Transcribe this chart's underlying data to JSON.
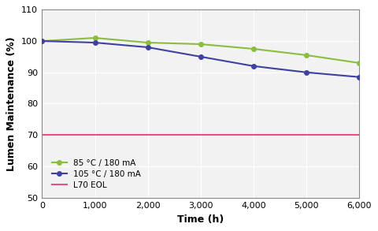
{
  "green_x": [
    0,
    1000,
    2000,
    3000,
    4000,
    5000,
    6000
  ],
  "green_y": [
    100.0,
    101.0,
    99.5,
    99.0,
    97.5,
    95.5,
    93.0
  ],
  "blue_x": [
    0,
    1000,
    2000,
    3000,
    4000,
    5000,
    6000
  ],
  "blue_y": [
    100.0,
    99.5,
    98.0,
    95.0,
    92.0,
    90.0,
    88.5
  ],
  "l70_y": 70,
  "green_color": "#8BBD3E",
  "blue_color": "#4040A0",
  "l70_color": "#E8508A",
  "xlabel": "Time (h)",
  "ylabel": "Lumen Maintenance (%)",
  "green_label": "85 °C / 180 mA",
  "blue_label": "105 °C / 180 mA",
  "l70_label": "L70 EOL",
  "xlim": [
    0,
    6000
  ],
  "ylim": [
    50,
    110
  ],
  "xticks": [
    0,
    1000,
    2000,
    3000,
    4000,
    5000,
    6000
  ],
  "yticks": [
    50,
    60,
    70,
    80,
    90,
    100,
    110
  ],
  "bg_color": "#FFFFFF",
  "plot_bg_color": "#F2F2F2",
  "grid_color": "#FFFFFF",
  "marker": "o",
  "markersize": 4,
  "linewidth": 1.5,
  "xlabel_fontsize": 9,
  "ylabel_fontsize": 9,
  "tick_fontsize": 8,
  "legend_fontsize": 7.5
}
